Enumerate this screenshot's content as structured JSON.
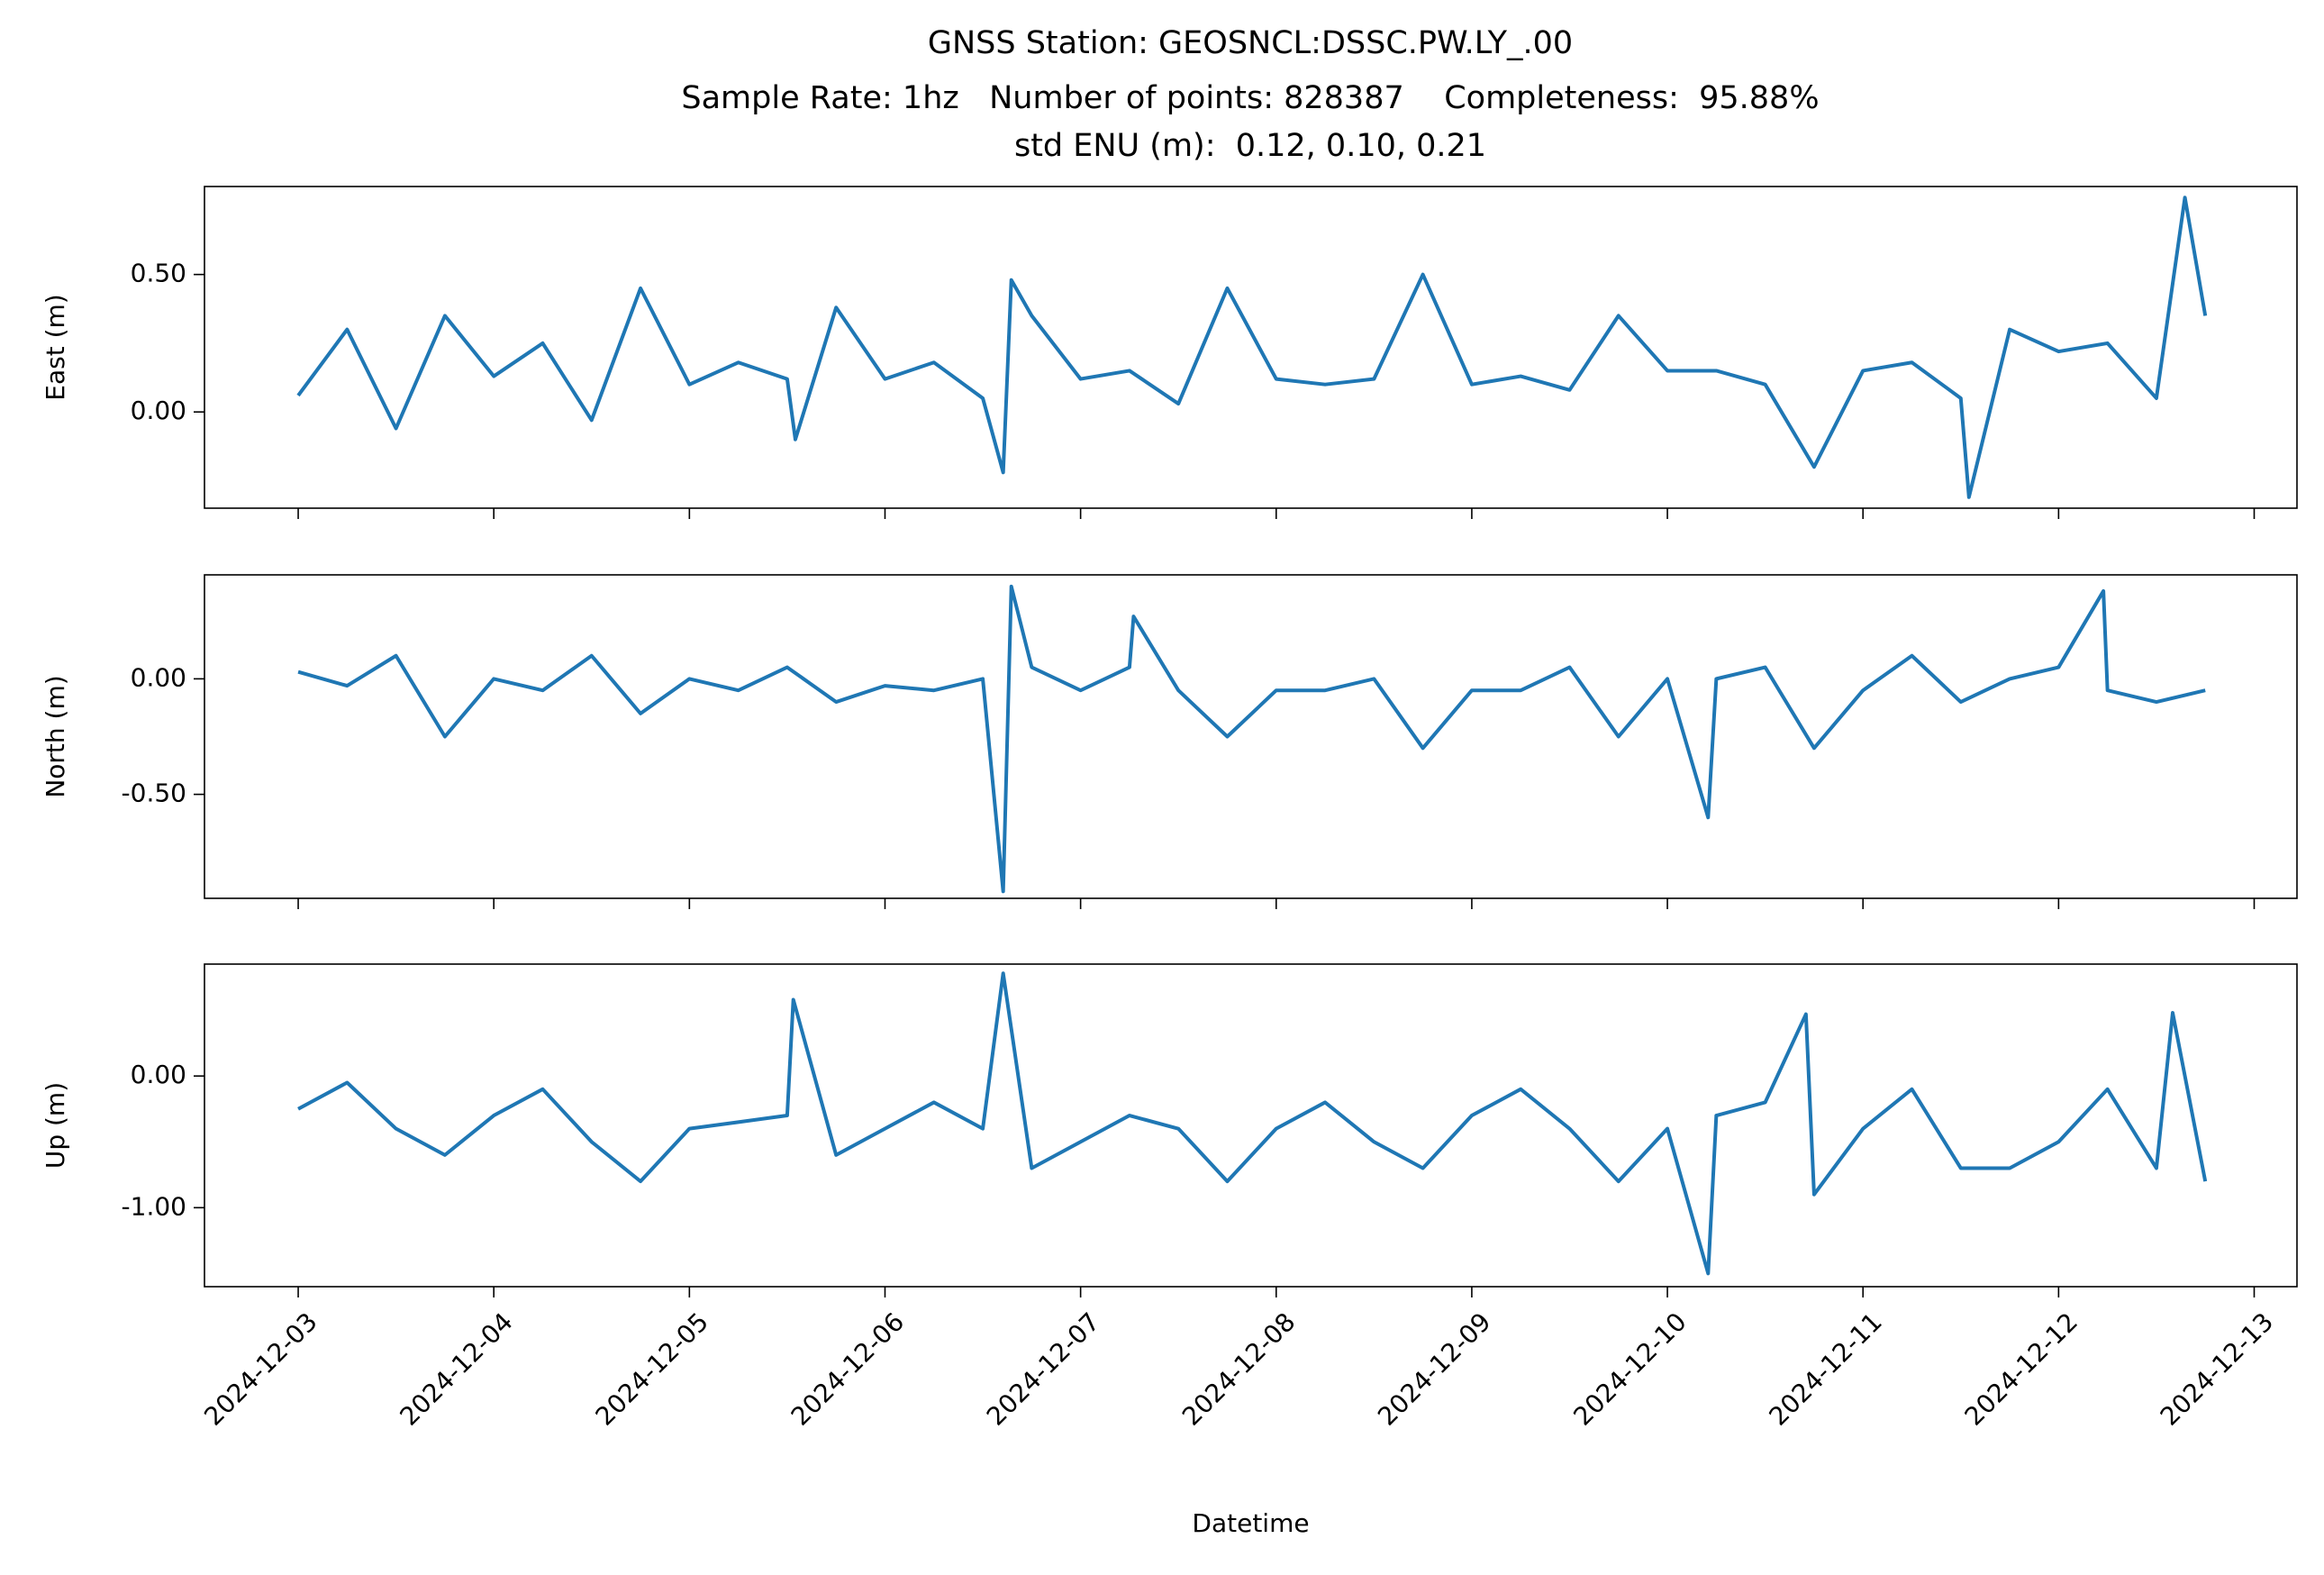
{
  "title": [
    "GNSS Station: GEOSNCL:DSSC.PW.LY_.00",
    "Sample Rate: 1hz   Number of points: 828387    Completeness:  95.88%",
    "std ENU (m):  0.12, 0.10, 0.21"
  ],
  "chart_data": [
    {
      "type": "line",
      "ylabel": "East (m)",
      "color": "#1f77b4",
      "xlim": [
        "2024-12-02 12:30",
        "2024-12-13 05:15"
      ],
      "ylim": [
        -0.35,
        0.82
      ],
      "yticks": [
        {
          "value": 0,
          "label": "0.00"
        },
        {
          "value": 0.5,
          "label": "0.50"
        }
      ],
      "x": [
        "2024-12-03 00:00",
        "2024-12-03 06:00",
        "2024-12-03 12:00",
        "2024-12-03 18:00",
        "2024-12-04 00:00",
        "2024-12-04 06:00",
        "2024-12-04 12:00",
        "2024-12-04 18:00",
        "2024-12-05 00:00",
        "2024-12-05 06:00",
        "2024-12-05 12:00",
        "2024-12-05 13:00",
        "2024-12-05 18:00",
        "2024-12-06 00:00",
        "2024-12-06 06:00",
        "2024-12-06 12:00",
        "2024-12-06 14:30",
        "2024-12-06 15:30",
        "2024-12-06 18:00",
        "2024-12-07 00:00",
        "2024-12-07 06:00",
        "2024-12-07 12:00",
        "2024-12-07 18:00",
        "2024-12-08 00:00",
        "2024-12-08 06:00",
        "2024-12-08 12:00",
        "2024-12-08 18:00",
        "2024-12-09 00:00",
        "2024-12-09 06:00",
        "2024-12-09 12:00",
        "2024-12-09 18:00",
        "2024-12-10 00:00",
        "2024-12-10 06:00",
        "2024-12-10 12:00",
        "2024-12-10 18:00",
        "2024-12-11 00:00",
        "2024-12-11 06:00",
        "2024-12-11 12:00",
        "2024-12-11 13:00",
        "2024-12-11 18:00",
        "2024-12-12 00:00",
        "2024-12-12 06:00",
        "2024-12-12 12:00",
        "2024-12-12 15:30",
        "2024-12-12 18:00"
      ],
      "values": [
        0.06,
        0.3,
        -0.06,
        0.35,
        0.13,
        0.25,
        -0.03,
        0.45,
        0.1,
        0.18,
        0.12,
        -0.1,
        0.38,
        0.12,
        0.18,
        0.05,
        -0.22,
        0.48,
        0.35,
        0.12,
        0.15,
        0.03,
        0.45,
        0.12,
        0.1,
        0.12,
        0.5,
        0.1,
        0.13,
        0.08,
        0.35,
        0.15,
        0.15,
        0.1,
        -0.2,
        0.15,
        0.18,
        0.05,
        -0.31,
        0.3,
        0.22,
        0.25,
        0.05,
        0.78,
        0.35
      ]
    },
    {
      "type": "line",
      "ylabel": "North (m)",
      "color": "#1f77b4",
      "xlim": [
        "2024-12-02 12:30",
        "2024-12-13 05:15"
      ],
      "ylim": [
        -0.95,
        0.45
      ],
      "yticks": [
        {
          "value": -0.5,
          "label": "-0.50"
        },
        {
          "value": 0,
          "label": "0.00"
        }
      ],
      "x": [
        "2024-12-03 00:00",
        "2024-12-03 06:00",
        "2024-12-03 12:00",
        "2024-12-03 18:00",
        "2024-12-04 00:00",
        "2024-12-04 06:00",
        "2024-12-04 12:00",
        "2024-12-04 18:00",
        "2024-12-05 00:00",
        "2024-12-05 06:00",
        "2024-12-05 12:00",
        "2024-12-05 18:00",
        "2024-12-06 00:00",
        "2024-12-06 06:00",
        "2024-12-06 12:00",
        "2024-12-06 14:30",
        "2024-12-06 15:30",
        "2024-12-06 18:00",
        "2024-12-07 00:00",
        "2024-12-07 06:00",
        "2024-12-07 06:30",
        "2024-12-07 12:00",
        "2024-12-07 18:00",
        "2024-12-08 00:00",
        "2024-12-08 06:00",
        "2024-12-08 12:00",
        "2024-12-08 18:00",
        "2024-12-09 00:00",
        "2024-12-09 06:00",
        "2024-12-09 12:00",
        "2024-12-09 18:00",
        "2024-12-10 00:00",
        "2024-12-10 05:00",
        "2024-12-10 06:00",
        "2024-12-10 12:00",
        "2024-12-10 18:00",
        "2024-12-11 00:00",
        "2024-12-11 06:00",
        "2024-12-11 12:00",
        "2024-12-11 18:00",
        "2024-12-12 00:00",
        "2024-12-12 05:30",
        "2024-12-12 06:00",
        "2024-12-12 12:00",
        "2024-12-12 18:00"
      ],
      "values": [
        0.03,
        -0.03,
        0.1,
        -0.25,
        0,
        -0.05,
        0.1,
        -0.15,
        0,
        -0.05,
        0.05,
        -0.1,
        -0.03,
        -0.05,
        0,
        -0.92,
        0.4,
        0.05,
        -0.05,
        0.05,
        0.27,
        -0.05,
        -0.25,
        -0.05,
        -0.05,
        0,
        -0.3,
        -0.05,
        -0.05,
        0.05,
        -0.25,
        0,
        -0.6,
        0,
        0.05,
        -0.3,
        -0.05,
        0.1,
        -0.1,
        0,
        0.05,
        0.38,
        -0.05,
        -0.1,
        -0.05
      ]
    },
    {
      "type": "line",
      "ylabel": "Up (m)",
      "xlabel": "Datetime",
      "color": "#1f77b4",
      "xlim": [
        "2024-12-02 12:30",
        "2024-12-13 05:15"
      ],
      "ylim": [
        -1.6,
        0.85
      ],
      "yticks": [
        {
          "value": -1,
          "label": "-1.00"
        },
        {
          "value": 0,
          "label": "0.00"
        }
      ],
      "xticks": [
        "2024-12-03",
        "2024-12-04",
        "2024-12-05",
        "2024-12-06",
        "2024-12-07",
        "2024-12-08",
        "2024-12-09",
        "2024-12-10",
        "2024-12-11",
        "2024-12-12",
        "2024-12-13"
      ],
      "x": [
        "2024-12-03 00:00",
        "2024-12-03 06:00",
        "2024-12-03 12:00",
        "2024-12-03 18:00",
        "2024-12-04 00:00",
        "2024-12-04 06:00",
        "2024-12-04 12:00",
        "2024-12-04 18:00",
        "2024-12-05 00:00",
        "2024-12-05 06:00",
        "2024-12-05 12:00",
        "2024-12-05 12:45",
        "2024-12-05 18:00",
        "2024-12-06 00:00",
        "2024-12-06 06:00",
        "2024-12-06 12:00",
        "2024-12-06 14:30",
        "2024-12-06 18:00",
        "2024-12-07 00:00",
        "2024-12-07 06:00",
        "2024-12-07 12:00",
        "2024-12-07 18:00",
        "2024-12-08 00:00",
        "2024-12-08 06:00",
        "2024-12-08 12:00",
        "2024-12-08 18:00",
        "2024-12-09 00:00",
        "2024-12-09 06:00",
        "2024-12-09 12:00",
        "2024-12-09 18:00",
        "2024-12-10 00:00",
        "2024-12-10 05:00",
        "2024-12-10 06:00",
        "2024-12-10 12:00",
        "2024-12-10 17:00",
        "2024-12-10 18:00",
        "2024-12-11 00:00",
        "2024-12-11 06:00",
        "2024-12-11 12:00",
        "2024-12-11 18:00",
        "2024-12-12 00:00",
        "2024-12-12 06:00",
        "2024-12-12 12:00",
        "2024-12-12 14:00",
        "2024-12-12 18:00"
      ],
      "values": [
        -0.25,
        -0.05,
        -0.4,
        -0.6,
        -0.3,
        -0.1,
        -0.5,
        -0.8,
        -0.4,
        -0.35,
        -0.3,
        0.58,
        -0.6,
        -0.4,
        -0.2,
        -0.4,
        0.78,
        -0.7,
        -0.5,
        -0.3,
        -0.4,
        -0.8,
        -0.4,
        -0.2,
        -0.5,
        -0.7,
        -0.3,
        -0.1,
        -0.4,
        -0.8,
        -0.4,
        -1.5,
        -0.3,
        -0.2,
        0.47,
        -0.9,
        -0.4,
        -0.1,
        -0.7,
        -0.7,
        -0.5,
        -0.1,
        -0.7,
        0.48,
        -0.8
      ]
    }
  ]
}
